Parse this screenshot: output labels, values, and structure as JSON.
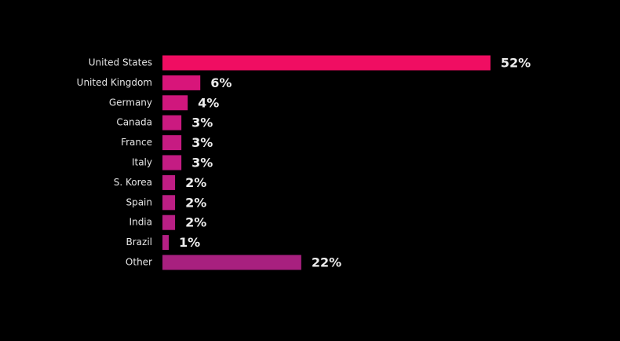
{
  "chart_data": {
    "type": "bar",
    "orientation": "horizontal",
    "categories": [
      "United States",
      "United Kingdom",
      "Germany",
      "Canada",
      "France",
      "Italy",
      "S. Korea",
      "Spain",
      "India",
      "Brazil",
      "Other"
    ],
    "values": [
      52,
      6,
      4,
      3,
      3,
      3,
      2,
      2,
      2,
      1,
      22
    ],
    "value_labels": [
      "52%",
      "6%",
      "4%",
      "3%",
      "3%",
      "3%",
      "2%",
      "2%",
      "2%",
      "1%",
      "22%"
    ],
    "colors": [
      "#f00d62",
      "#d8157a",
      "#d0177d",
      "#cb1a80",
      "#c71b82",
      "#c41c83",
      "#c01d84",
      "#bd1e84",
      "#b91f85",
      "#b52085",
      "#a8207f"
    ]
  }
}
